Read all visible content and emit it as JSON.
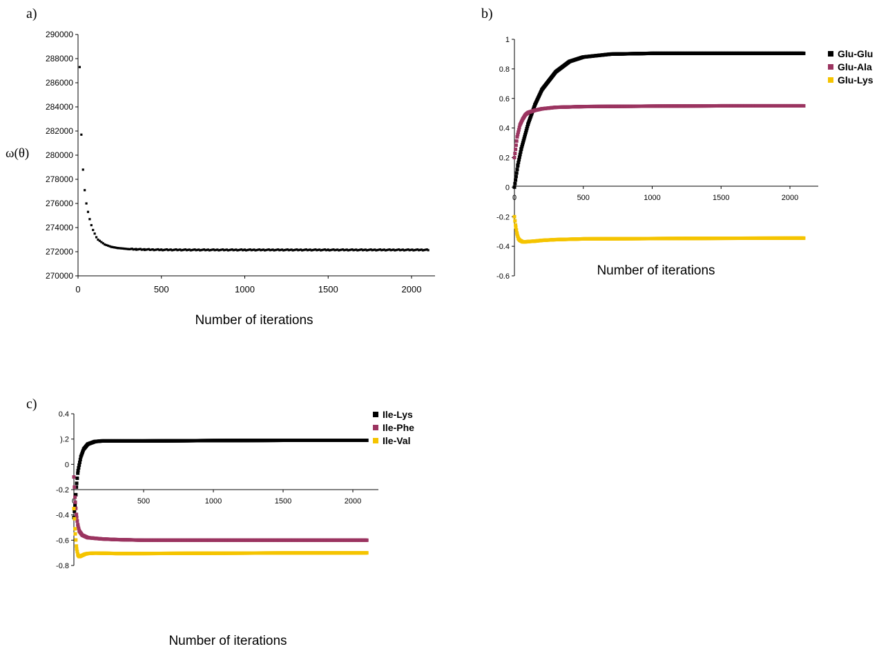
{
  "colors": {
    "black": "#000000",
    "magenta": "#9b3460",
    "yellow": "#f5c400"
  },
  "chart_data": [
    {
      "type": "scatter",
      "panel": "a)",
      "ylabel": "ω(θ)",
      "xlabel": "Number of iterations",
      "xlim": [
        0,
        2100
      ],
      "ylim": [
        270000,
        290000
      ],
      "xticks": [
        "0",
        "500",
        "1000",
        "1500",
        "2000"
      ],
      "yticks": [
        "270000",
        "272000",
        "274000",
        "276000",
        "278000",
        "280000",
        "282000",
        "284000",
        "286000",
        "288000",
        "290000"
      ],
      "grid": false,
      "series": [
        {
          "x": [
            10,
            20,
            30,
            40,
            50,
            60,
            70,
            80,
            90,
            100,
            110,
            120,
            130,
            140,
            150,
            160,
            170,
            180,
            190,
            200,
            220,
            240,
            260,
            280,
            300,
            350,
            400,
            500,
            700,
            1000,
            1500,
            2100
          ],
          "y": [
            287300,
            281700,
            278800,
            277100,
            276000,
            275300,
            274700,
            274200,
            273800,
            273500,
            273200,
            273000,
            272900,
            272800,
            272700,
            272600,
            272550,
            272500,
            272450,
            272400,
            272350,
            272300,
            272280,
            272250,
            272220,
            272200,
            272180,
            272160,
            272150,
            272150,
            272150,
            272150
          ]
        }
      ]
    },
    {
      "type": "line",
      "panel": "b)",
      "xlabel": "Number of iterations",
      "xlim": [
        0,
        2100
      ],
      "ylim": [
        -0.6,
        1
      ],
      "xticks": [
        "0",
        "500",
        "1000",
        "1500",
        "2000"
      ],
      "yticks": [
        "-0.6",
        "-0.4",
        "-0.2",
        "0",
        "0.2",
        "0.4",
        "0.6",
        "0.8",
        "1"
      ],
      "legend": "right",
      "series": [
        {
          "name": "Glu-Glu",
          "color": "#000000",
          "x": [
            0,
            25,
            50,
            100,
            150,
            200,
            300,
            400,
            500,
            700,
            1000,
            1500,
            2100
          ],
          "y": [
            0,
            0.15,
            0.26,
            0.43,
            0.56,
            0.66,
            0.78,
            0.85,
            0.88,
            0.9,
            0.905,
            0.905,
            0.905
          ]
        },
        {
          "name": "Glu-Ala",
          "color": "#9b3460",
          "x": [
            0,
            20,
            40,
            60,
            80,
            100,
            150,
            200,
            300,
            500,
            1000,
            1500,
            2100
          ],
          "y": [
            0.2,
            0.34,
            0.42,
            0.46,
            0.49,
            0.505,
            0.52,
            0.53,
            0.54,
            0.545,
            0.548,
            0.55,
            0.55
          ]
        },
        {
          "name": "Glu-Lys",
          "color": "#f5c400",
          "x": [
            0,
            10,
            20,
            30,
            40,
            60,
            80,
            100,
            150,
            200,
            300,
            500,
            1000,
            1500,
            2100
          ],
          "y": [
            -0.2,
            -0.27,
            -0.32,
            -0.35,
            -0.36,
            -0.37,
            -0.37,
            -0.368,
            -0.365,
            -0.36,
            -0.355,
            -0.35,
            -0.348,
            -0.346,
            -0.345
          ]
        }
      ]
    },
    {
      "type": "line",
      "panel": "c)",
      "xlabel": "Number of iterations",
      "xlim": [
        0,
        2100
      ],
      "ylim": [
        -0.8,
        0.4
      ],
      "xticks": [
        "0",
        "500",
        "1000",
        "1500",
        "2000"
      ],
      "yticks": [
        "-0.8",
        "-0.6",
        "-0.4",
        "-0.2",
        "0",
        ").2",
        "0.4"
      ],
      "legend": "top-right",
      "series": [
        {
          "name": "Ile-Lys",
          "color": "#000000",
          "x": [
            0,
            10,
            20,
            30,
            50,
            70,
            100,
            150,
            200,
            300,
            500,
            1000,
            1500,
            2100
          ],
          "y": [
            -0.42,
            -0.3,
            -0.15,
            -0.05,
            0.06,
            0.12,
            0.16,
            0.18,
            0.185,
            0.185,
            0.185,
            0.188,
            0.19,
            0.19
          ]
        },
        {
          "name": "Ile-Phe",
          "color": "#9b3460",
          "x": [
            0,
            10,
            20,
            30,
            40,
            60,
            80,
            100,
            150,
            200,
            300,
            500,
            1000,
            1500,
            2100
          ],
          "y": [
            -0.1,
            -0.3,
            -0.42,
            -0.49,
            -0.53,
            -0.56,
            -0.57,
            -0.58,
            -0.585,
            -0.59,
            -0.595,
            -0.6,
            -0.6,
            -0.6,
            -0.6
          ]
        },
        {
          "name": "Ile-Val",
          "color": "#f5c400",
          "x": [
            0,
            10,
            20,
            30,
            40,
            60,
            80,
            100,
            150,
            200,
            300,
            500,
            1000,
            1500,
            2100
          ],
          "y": [
            -0.35,
            -0.55,
            -0.67,
            -0.72,
            -0.73,
            -0.72,
            -0.71,
            -0.705,
            -0.702,
            -0.703,
            -0.705,
            -0.705,
            -0.703,
            -0.701,
            -0.7
          ]
        }
      ]
    }
  ]
}
